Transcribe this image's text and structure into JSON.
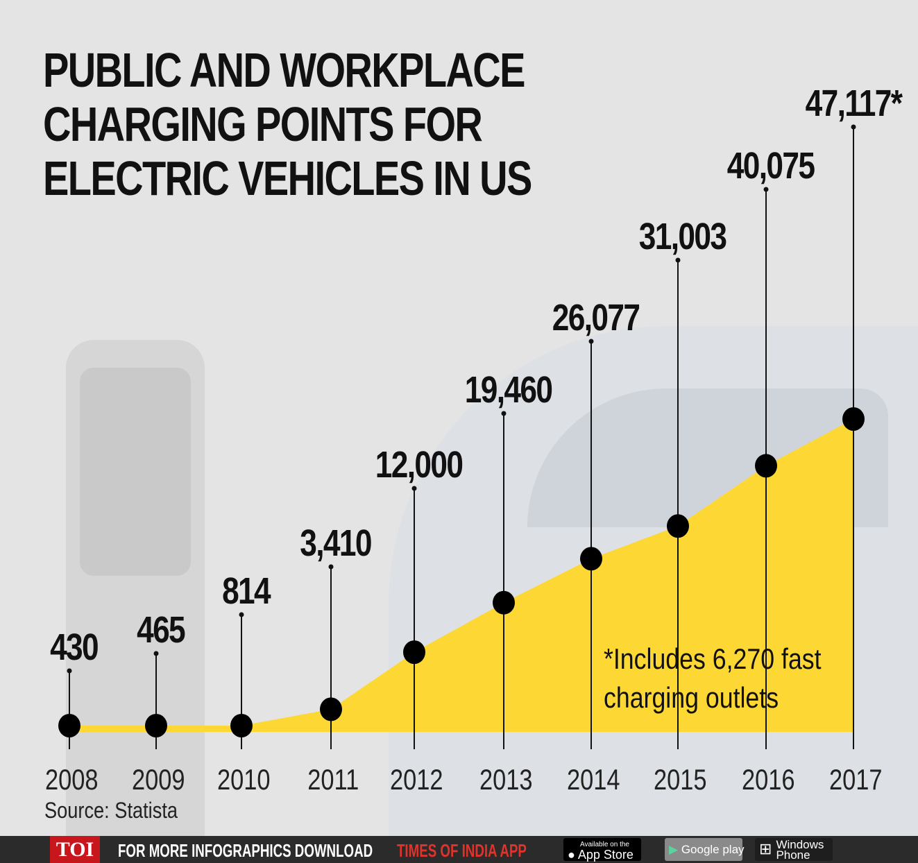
{
  "title_lines": [
    "PUBLIC AND WORKPLACE",
    "CHARGING POINTS FOR",
    "ELECTRIC VEHICLES IN US"
  ],
  "chart_data": {
    "type": "area",
    "title": "PUBLIC AND WORKPLACE CHARGING POINTS FOR ELECTRIC VEHICLES IN US",
    "categories": [
      "2008",
      "2009",
      "2010",
      "2011",
      "2012",
      "2013",
      "2014",
      "2015",
      "2016",
      "2017"
    ],
    "values": [
      430,
      465,
      814,
      3410,
      12000,
      19460,
      26077,
      31003,
      40075,
      47117
    ],
    "data_labels": [
      "430",
      "465",
      "814",
      "3,410",
      "12,000",
      "19,460",
      "26,077",
      "31,003",
      "40,075",
      "47,117*"
    ],
    "fill_color": "#fdd835",
    "marker_color": "#000000",
    "grid": false,
    "annotation": [
      "*Includes 6,270 fast",
      "charging outlets"
    ]
  },
  "source": "Source: Statista",
  "footer": {
    "logo": "TOI",
    "text_white": "FOR MORE  INFOGRAPHICS DOWNLOAD",
    "text_red": "TIMES OF INDIA  APP",
    "app_store": [
      "Available on the",
      "App Store"
    ],
    "google_play": "Google play",
    "windows_phone": [
      "Windows",
      "Phone"
    ]
  }
}
